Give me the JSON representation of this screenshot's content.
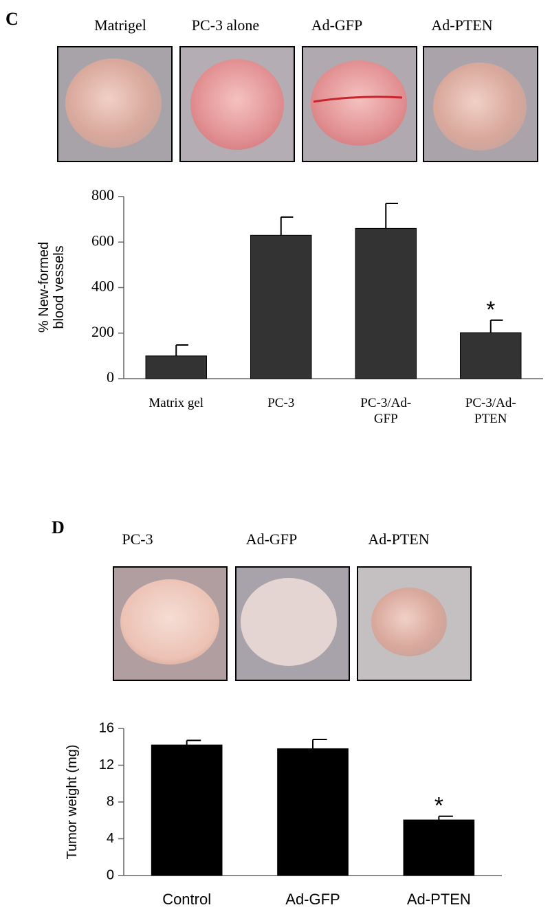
{
  "panels": [
    {
      "label": "C",
      "photo_labels": [
        "Matrigel",
        "PC-3 alone",
        "Ad-GFP",
        "Ad-PTEN"
      ]
    },
    {
      "label": "D",
      "photo_labels": [
        "PC-3",
        "Ad-GFP",
        "Ad-PTEN"
      ]
    }
  ],
  "chart_data": [
    {
      "type": "bar",
      "y_label": [
        "% New-formed",
        "blood vessels"
      ],
      "categories": [
        "Matrix gel",
        "PC-3",
        "PC-3/Ad-GFP",
        "PC-3/Ad-PTEN"
      ],
      "values": [
        100,
        630,
        660,
        202
      ],
      "errors": [
        48,
        80,
        110,
        55
      ],
      "color": "#333333",
      "ylim": [
        0,
        800
      ],
      "yticks": [
        0,
        200,
        400,
        600,
        800
      ],
      "grid": false,
      "annotation": "*"
    },
    {
      "type": "bar",
      "y_label": [
        "Tumor weight (mg)"
      ],
      "categories": [
        "Control",
        "Ad-GFP",
        "Ad-PTEN"
      ],
      "values": [
        14.2,
        13.8,
        6.05
      ],
      "errors": [
        0.5,
        1.0,
        0.4
      ],
      "color": "#000000",
      "ylim": [
        0,
        16
      ],
      "yticks": [
        0,
        4,
        8,
        12,
        16
      ],
      "grid": false,
      "annotation": "*"
    }
  ]
}
